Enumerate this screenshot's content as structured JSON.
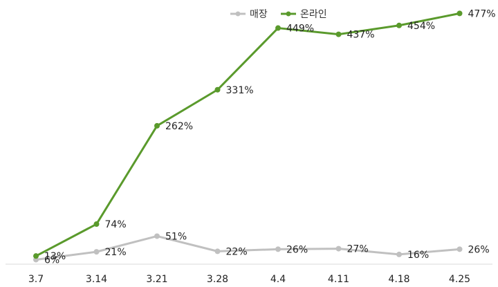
{
  "legend": {
    "items": [
      {
        "label": "매장",
        "color": "#c0c0c0"
      },
      {
        "label": "온라인",
        "color": "#5a9a2c"
      }
    ]
  },
  "chart_data": {
    "type": "line",
    "categories": [
      "3.7",
      "3.14",
      "3.21",
      "3.28",
      "4.4",
      "4.11",
      "4.18",
      "4.25"
    ],
    "series": [
      {
        "name": "매장",
        "color": "#c0c0c0",
        "values": [
          6,
          21,
          51,
          22,
          26,
          27,
          16,
          26
        ],
        "labels": [
          "6%",
          "21%",
          "51%",
          "22%",
          "26%",
          "27%",
          "16%",
          "26%"
        ]
      },
      {
        "name": "온라인",
        "color": "#5a9a2c",
        "values": [
          13,
          74,
          262,
          331,
          449,
          437,
          454,
          477
        ],
        "labels": [
          "13%",
          "74%",
          "262%",
          "331%",
          "449%",
          "437%",
          "454%",
          "477%"
        ]
      }
    ],
    "ylim": [
      0,
      500
    ],
    "grid": false,
    "legend_position": "top-center",
    "title": "",
    "xlabel": "",
    "ylabel": ""
  }
}
